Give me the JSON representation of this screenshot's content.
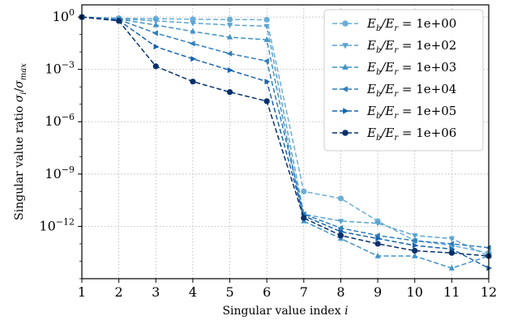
{
  "chart_data": {
    "type": "line",
    "xlabel": "Singular value index i",
    "ylabel": "Singular value ratio σi/σmax",
    "yscale": "log",
    "xlim": [
      1,
      12
    ],
    "ylim": [
      1e-15,
      5
    ],
    "grid": true,
    "legend_position": "top-right",
    "x": [
      1,
      2,
      3,
      4,
      5,
      6,
      7,
      8,
      9,
      10,
      11,
      12
    ],
    "x_tick_labels": [
      "1",
      "2",
      "3",
      "4",
      "5",
      "6",
      "7",
      "8",
      "9",
      "10",
      "11",
      "12"
    ],
    "y_ticks": [
      {
        "value": 1,
        "base": "10",
        "exp": "0"
      },
      {
        "value": 0.001,
        "base": "10",
        "exp": "−3"
      },
      {
        "value": 1e-06,
        "base": "10",
        "exp": "−6"
      },
      {
        "value": 1e-09,
        "base": "10",
        "exp": "−9"
      },
      {
        "value": 1e-12,
        "base": "10",
        "exp": "−12"
      }
    ],
    "series": [
      {
        "name": "Eb/Er = 1e+00",
        "prefix": "E",
        "sub1": "b",
        "mid": "/E",
        "sub2": "r",
        "suffix": " = 1e+00",
        "marker": "circle",
        "color": "#6baed6",
        "values": [
          1,
          0.85,
          0.8,
          0.75,
          0.72,
          0.7,
          1e-10,
          4e-11,
          2e-12,
          1.5e-13,
          8e-14,
          3e-14
        ]
      },
      {
        "name": "Eb/Er = 1e+02",
        "prefix": "E",
        "sub1": "b",
        "mid": "/E",
        "sub2": "r",
        "suffix": " = 1e+02",
        "marker": "triangle-down",
        "color": "#5ba3d0",
        "values": [
          1,
          0.8,
          0.6,
          0.45,
          0.35,
          0.3,
          5e-12,
          2e-12,
          1.5e-12,
          3e-13,
          2e-13,
          2e-14
        ]
      },
      {
        "name": "Eb/Er = 1e+03",
        "prefix": "E",
        "sub1": "b",
        "mid": "/E",
        "sub2": "r",
        "suffix": " = 1e+03",
        "marker": "triangle-up",
        "color": "#4292c6",
        "values": [
          1,
          0.75,
          0.35,
          0.15,
          0.07,
          0.05,
          2e-12,
          2e-13,
          2e-14,
          2e-14,
          4e-15,
          2e-14
        ]
      },
      {
        "name": "Eb/Er = 1e+04",
        "prefix": "E",
        "sub1": "b",
        "mid": "/E",
        "sub2": "r",
        "suffix": " = 1e+04",
        "marker": "triangle-left",
        "color": "#2f7ebc",
        "values": [
          1,
          0.7,
          0.12,
          0.03,
          0.008,
          0.003,
          5e-12,
          8e-13,
          3e-13,
          1.5e-13,
          1e-13,
          6e-14
        ]
      },
      {
        "name": "Eb/Er = 1e+05",
        "prefix": "E",
        "sub1": "b",
        "mid": "/E",
        "sub2": "r",
        "suffix": " = 1e+05",
        "marker": "triangle-right",
        "color": "#1764ab",
        "values": [
          1,
          0.65,
          0.02,
          0.004,
          0.0009,
          0.0002,
          4e-12,
          5e-13,
          2e-13,
          8e-14,
          5e-14,
          4e-15
        ]
      },
      {
        "name": "Eb/Er = 1e+06",
        "prefix": "E",
        "sub1": "b",
        "mid": "/E",
        "sub2": "r",
        "suffix": " = 1e+06",
        "marker": "circle",
        "color": "#08306b",
        "values": [
          1,
          0.6,
          0.0015,
          0.0002,
          5e-05,
          1.5e-05,
          3e-12,
          3e-13,
          1e-13,
          4e-14,
          3e-14,
          2e-14
        ]
      }
    ]
  }
}
